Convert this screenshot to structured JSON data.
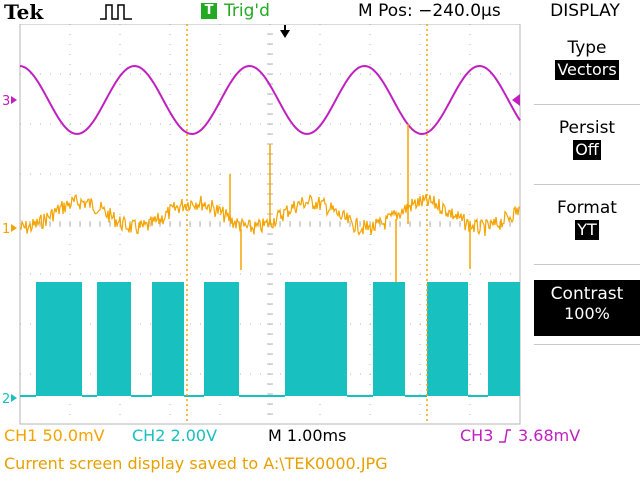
{
  "header": {
    "brand": "Tek",
    "trigger_badge": "T",
    "trigger_status": "Trig'd",
    "position": "M Pos: −240.0µs",
    "menu_title": "DISPLAY"
  },
  "menu": [
    {
      "label": "Type",
      "value": "Vectors"
    },
    {
      "label": "Persist",
      "value": "Off"
    },
    {
      "label": "Format",
      "value": "YT"
    },
    {
      "label": "Contrast",
      "value": "100%"
    }
  ],
  "channel_markers": {
    "ch3": "3",
    "ch1": "1",
    "ch2": "2"
  },
  "status": {
    "ch1": "CH1  50.0mV",
    "ch2": "CH2  2.00V",
    "timebase": "M 1.00ms",
    "ch3_prefix": "CH3",
    "ch3_level": "3.68mV"
  },
  "message": "Current screen display saved to A:\\TEK0000.JPG",
  "colors": {
    "ch1": "#f5a300",
    "ch2": "#18c0c0",
    "ch3": "#c020c0",
    "trigger_ok": "#22aa22",
    "grid": "#b4b4b4"
  },
  "icons": [
    "pulse-icon",
    "trigger-marker-icon",
    "trigger-edge-icon",
    "trigger-level-icon"
  ]
}
